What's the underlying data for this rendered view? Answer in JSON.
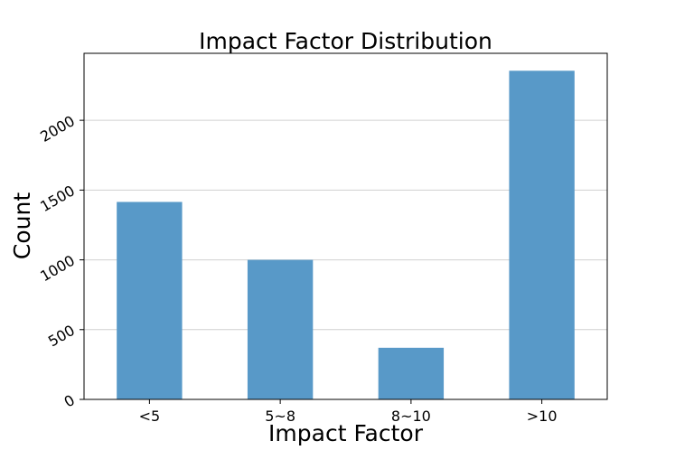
{
  "chart_data": {
    "type": "bar",
    "title": "Impact Factor Distribution",
    "xlabel": "Impact Factor",
    "ylabel": "Count",
    "categories": [
      "<5",
      "5~8",
      "8~10",
      ">10"
    ],
    "values": [
      1415,
      1000,
      370,
      2355
    ],
    "ylim": [
      0,
      2480
    ],
    "yticks": [
      0,
      500,
      1000,
      1500,
      2000
    ],
    "ytick_labels": [
      "0",
      "500",
      "1000",
      "1500",
      "2000"
    ],
    "grid": "horizontal",
    "bar_color": "#5899c8",
    "legend": "none"
  }
}
